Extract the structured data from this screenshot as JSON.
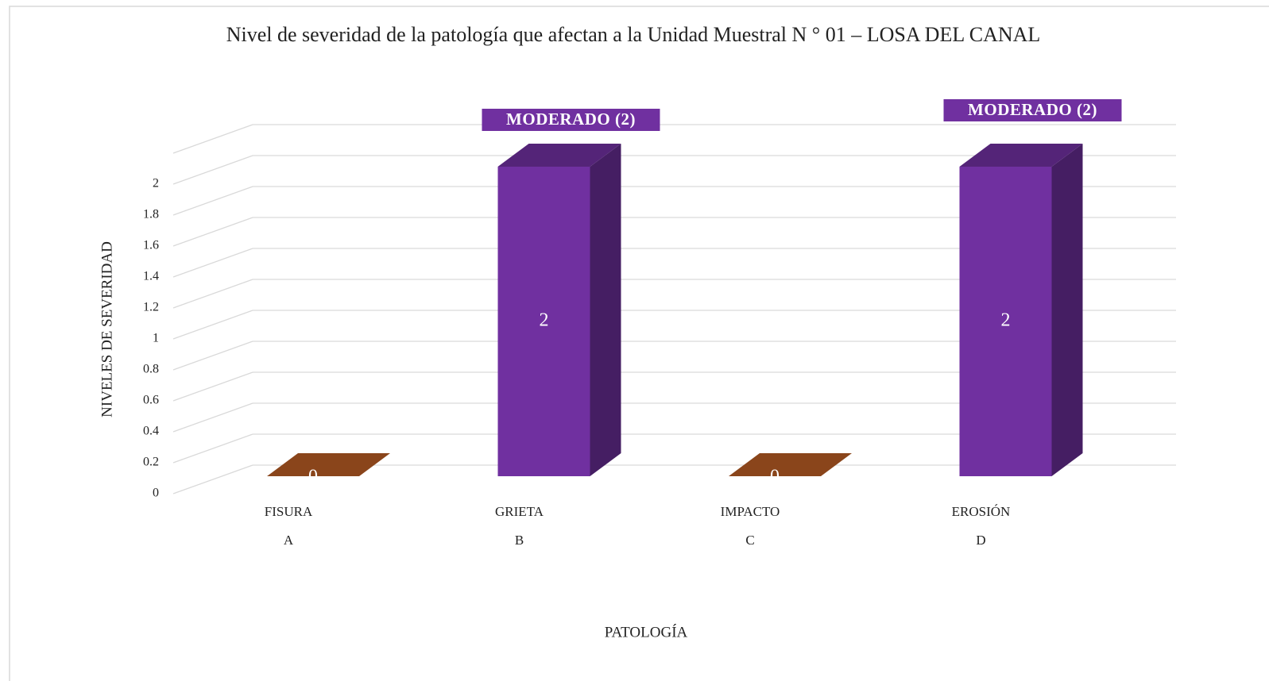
{
  "chart_data": {
    "type": "bar3d",
    "title": "Nivel de severidad de la patología que afectan a la Unidad Muestral N ° 01 – LOSA DEL CANAL",
    "categories": [
      "FISURA",
      "GRIETA",
      "IMPACTO",
      "EROSIÓN"
    ],
    "category_letters": [
      "A",
      "B",
      "C",
      "D"
    ],
    "values": [
      0,
      2,
      0,
      2
    ],
    "colors": [
      "#b85c24",
      "#7030a0",
      "#b85c24",
      "#7030a0"
    ],
    "value_annotations": [
      null,
      "MODERADO (2)",
      null,
      "MODERADO (2)"
    ],
    "ylabel": "NIVELES DE SEVERIDAD",
    "xlabel": "PATOLOGÍA",
    "ylim": [
      0,
      2.2
    ],
    "yticks": [
      0,
      0.2,
      0.4,
      0.6,
      0.8,
      1,
      1.2,
      1.4,
      1.6,
      1.8,
      2
    ],
    "grid": true
  }
}
